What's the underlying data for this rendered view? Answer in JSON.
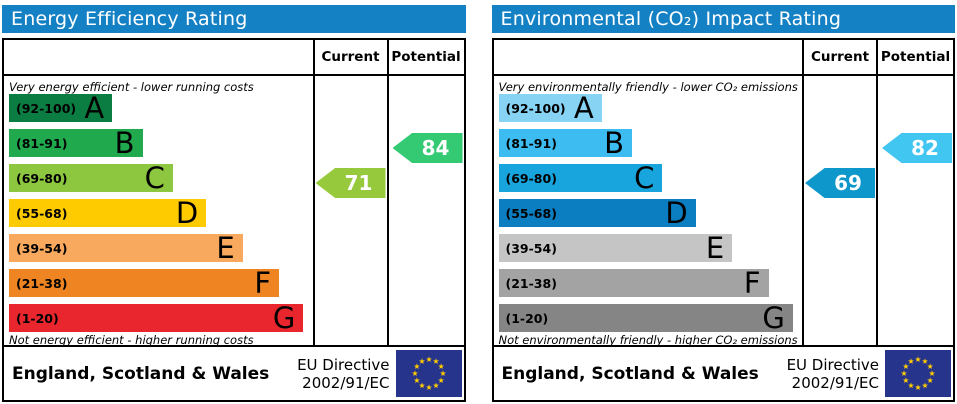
{
  "shared": {
    "header": {
      "current_label": "Current",
      "potential_label": "Potential"
    },
    "footer": {
      "region": "England, Scotland & Wales",
      "directive_line1": "EU Directive",
      "directive_line2": "2002/91/EC",
      "flag_bg": "#27348b",
      "star_color": "#ffcc00"
    },
    "title_bg": "#1581c5"
  },
  "chart_data": [
    {
      "type": "bar",
      "title": "Energy Efficiency Rating",
      "top_caption": "Very energy efficient - lower running costs",
      "bottom_caption": "Not energy efficient - higher running costs",
      "scale": [
        1,
        100
      ],
      "bands": [
        {
          "letter": "A",
          "range_label": "(92-100)",
          "min": 92,
          "max": 100,
          "color": "#0c7d42",
          "width_pct": 34
        },
        {
          "letter": "B",
          "range_label": "(81-91)",
          "min": 81,
          "max": 91,
          "color": "#21a94e",
          "width_pct": 44
        },
        {
          "letter": "C",
          "range_label": "(69-80)",
          "min": 69,
          "max": 80,
          "color": "#8dc63f",
          "width_pct": 54
        },
        {
          "letter": "D",
          "range_label": "(55-68)",
          "min": 55,
          "max": 68,
          "color": "#fecb00",
          "width_pct": 65
        },
        {
          "letter": "E",
          "range_label": "(39-54)",
          "min": 39,
          "max": 54,
          "color": "#f9a95d",
          "width_pct": 77
        },
        {
          "letter": "F",
          "range_label": "(21-38)",
          "min": 21,
          "max": 38,
          "color": "#ef8522",
          "width_pct": 89
        },
        {
          "letter": "G",
          "range_label": "(1-20)",
          "min": 1,
          "max": 20,
          "color": "#e9262e",
          "width_pct": 97
        }
      ],
      "current": {
        "value": 71,
        "band": "C",
        "color": "#97c93d"
      },
      "potential": {
        "value": 84,
        "band": "B",
        "color": "#33ca73"
      }
    },
    {
      "type": "bar",
      "title": "Environmental (CO₂) Impact Rating",
      "top_caption": "Very environmentally friendly - lower CO₂ emissions",
      "bottom_caption": "Not environmentally friendly - higher CO₂ emissions",
      "scale": [
        1,
        100
      ],
      "bands": [
        {
          "letter": "A",
          "range_label": "(92-100)",
          "min": 92,
          "max": 100,
          "color": "#86d3f3",
          "width_pct": 34
        },
        {
          "letter": "B",
          "range_label": "(81-91)",
          "min": 81,
          "max": 91,
          "color": "#3cbcf0",
          "width_pct": 44
        },
        {
          "letter": "C",
          "range_label": "(69-80)",
          "min": 69,
          "max": 80,
          "color": "#18a4dd",
          "width_pct": 54
        },
        {
          "letter": "D",
          "range_label": "(55-68)",
          "min": 55,
          "max": 68,
          "color": "#0b7dc1",
          "width_pct": 65
        },
        {
          "letter": "E",
          "range_label": "(39-54)",
          "min": 39,
          "max": 54,
          "color": "#c5c5c5",
          "width_pct": 77
        },
        {
          "letter": "F",
          "range_label": "(21-38)",
          "min": 21,
          "max": 38,
          "color": "#a3a3a3",
          "width_pct": 89
        },
        {
          "letter": "G",
          "range_label": "(1-20)",
          "min": 1,
          "max": 20,
          "color": "#858585",
          "width_pct": 97
        }
      ],
      "current": {
        "value": 69,
        "band": "C",
        "color": "#0e97ca"
      },
      "potential": {
        "value": 82,
        "band": "B",
        "color": "#41c5f1"
      }
    }
  ]
}
